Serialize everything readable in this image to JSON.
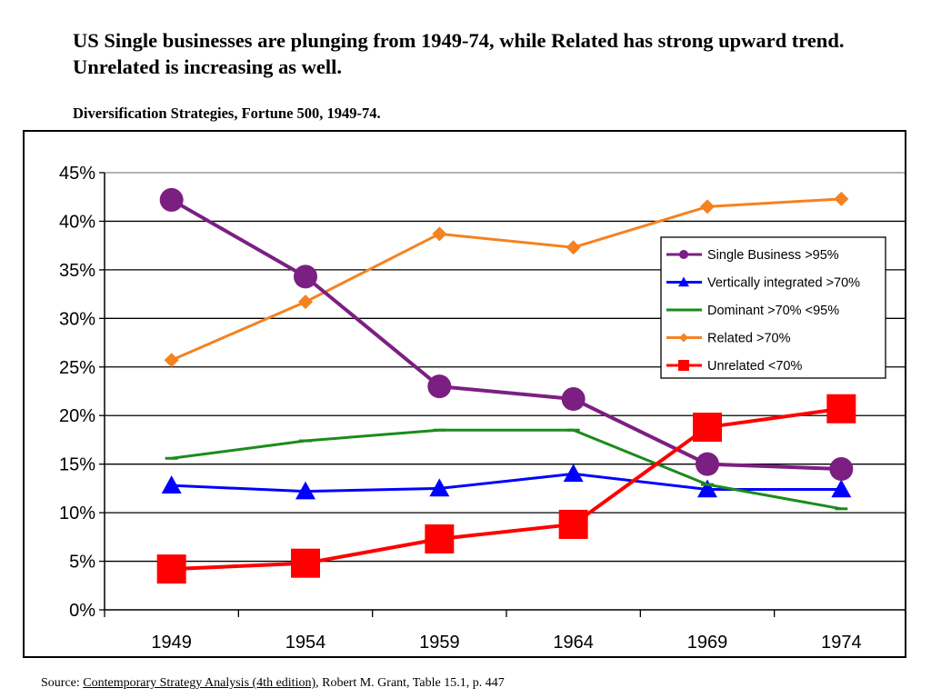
{
  "headline": "US Single businesses are plunging from 1949-74, while Related has strong upward trend.  Unrelated is increasing as well.",
  "subtitle": "Diversification Strategies, Fortune 500, 1949-74.",
  "source": {
    "prefix": "Source:  ",
    "link": "Contemporary Strategy Analysis (4th edition)",
    "suffix": ", Robert M. Grant, Table 15.1, p. 447"
  },
  "chart_data": {
    "type": "line",
    "title": "",
    "xlabel": "",
    "ylabel": "",
    "categories": [
      "1949",
      "1954",
      "1959",
      "1964",
      "1969",
      "1974"
    ],
    "ylim": [
      0,
      45
    ],
    "ytick_step": 5,
    "ytick_format": "percent",
    "grid": true,
    "legend_position": "right",
    "series": [
      {
        "name": "Single Business >95%",
        "values": [
          42.2,
          34.3,
          23.0,
          21.7,
          15.0,
          14.5
        ],
        "color": "#7B1F82",
        "marker": "circle"
      },
      {
        "name": "Vertically integrated >70%",
        "values": [
          12.8,
          12.2,
          12.5,
          14.0,
          12.4,
          12.4
        ],
        "color": "#0000FF",
        "marker": "triangle"
      },
      {
        "name": "Dominant >70% <95%",
        "values": [
          15.6,
          17.4,
          18.5,
          18.5,
          12.9,
          10.4
        ],
        "color": "#1A8C1A",
        "marker": "dash"
      },
      {
        "name": "Related >70%",
        "values": [
          25.7,
          31.7,
          38.7,
          37.3,
          41.5,
          42.3
        ],
        "color": "#F58220",
        "marker": "diamond"
      },
      {
        "name": "Unrelated <70%",
        "values": [
          4.2,
          4.8,
          7.3,
          8.8,
          18.8,
          20.7
        ],
        "color": "#FF0000",
        "marker": "square"
      }
    ]
  }
}
